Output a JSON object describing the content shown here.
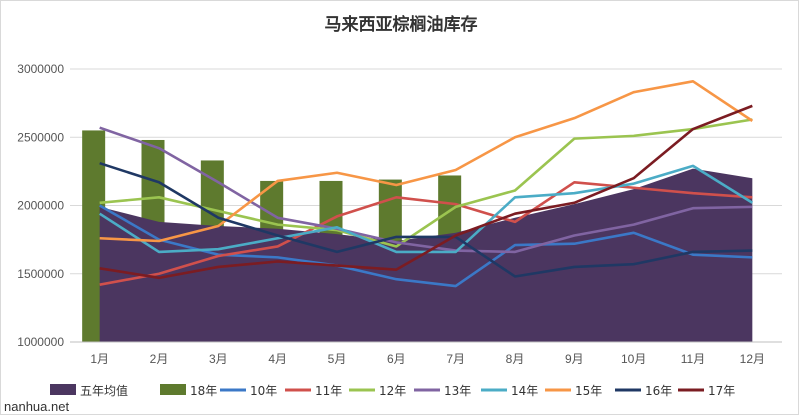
{
  "watermark": "nanhua.net",
  "chart_data": {
    "type": "bar+area+line",
    "title": "马来西亚棕榈油库存",
    "xlabel": "",
    "ylabel": "",
    "ylim": [
      1000000,
      3000000
    ],
    "yticks": [
      1000000,
      1500000,
      2000000,
      2500000,
      3000000
    ],
    "ytick_labels": [
      "1000000",
      "1500000",
      "2000000",
      "2500000",
      "3000000"
    ],
    "grid": true,
    "legend_position": "bottom",
    "categories": [
      "1月",
      "2月",
      "3月",
      "4月",
      "5月",
      "6月",
      "7月",
      "8月",
      "9月",
      "10月",
      "11月",
      "12月"
    ],
    "area": {
      "name": "五年均值",
      "color": "#4b3660",
      "values": [
        1990000,
        1880000,
        1850000,
        1830000,
        1790000,
        1740000,
        1800000,
        1910000,
        2010000,
        2120000,
        2270000,
        2200000
      ]
    },
    "bars": {
      "name": "18年",
      "color": "#5e7a2e",
      "values": [
        2550000,
        2480000,
        2330000,
        2180000,
        2180000,
        2190000,
        2220000,
        null,
        null,
        null,
        null,
        null
      ]
    },
    "series": [
      {
        "name": "10年",
        "color": "#3b78c7",
        "values": [
          2000000,
          1750000,
          1640000,
          1620000,
          1560000,
          1460000,
          1410000,
          1710000,
          1720000,
          1800000,
          1640000,
          1620000
        ]
      },
      {
        "name": "11年",
        "color": "#d0504c",
        "values": [
          1420000,
          1500000,
          1630000,
          1700000,
          1920000,
          2060000,
          2010000,
          1880000,
          2170000,
          2130000,
          2090000,
          2060000
        ]
      },
      {
        "name": "12年",
        "color": "#9bc450",
        "values": [
          2020000,
          2060000,
          1960000,
          1860000,
          1820000,
          1700000,
          1990000,
          2110000,
          2490000,
          2510000,
          2560000,
          2630000
        ]
      },
      {
        "name": "13年",
        "color": "#8064a2",
        "values": [
          2570000,
          2420000,
          2170000,
          1910000,
          1830000,
          1730000,
          1670000,
          1660000,
          1780000,
          1860000,
          1980000,
          1990000
        ]
      },
      {
        "name": "14年",
        "color": "#4bacc6",
        "values": [
          1940000,
          1660000,
          1680000,
          1760000,
          1840000,
          1660000,
          1660000,
          2060000,
          2090000,
          2160000,
          2290000,
          2020000
        ]
      },
      {
        "name": "15年",
        "color": "#f79646",
        "values": [
          1760000,
          1740000,
          1850000,
          2180000,
          2240000,
          2150000,
          2260000,
          2500000,
          2640000,
          2830000,
          2910000,
          2620000
        ]
      },
      {
        "name": "16年",
        "color": "#1f3864",
        "values": [
          2310000,
          2170000,
          1910000,
          1780000,
          1660000,
          1770000,
          1770000,
          1480000,
          1550000,
          1570000,
          1660000,
          1670000
        ]
      },
      {
        "name": "17年",
        "color": "#7b1c22",
        "values": [
          1540000,
          1470000,
          1550000,
          1590000,
          1560000,
          1530000,
          1780000,
          1940000,
          2020000,
          2200000,
          2560000,
          2730000
        ]
      }
    ]
  }
}
